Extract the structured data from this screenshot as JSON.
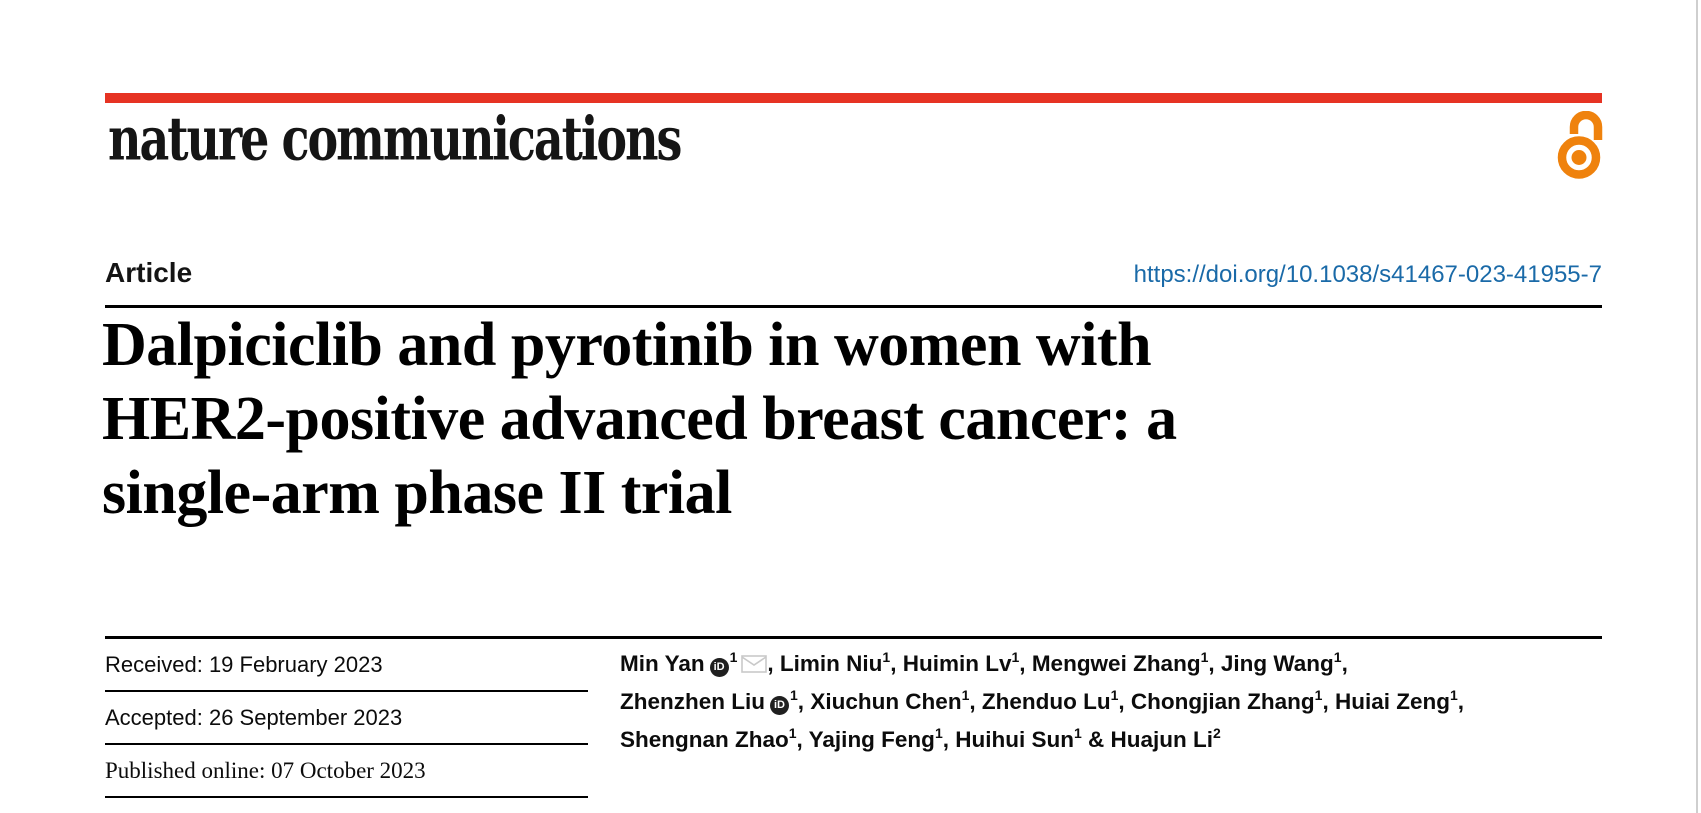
{
  "brand": {
    "journal": "nature communications",
    "bar_color": "#e63323",
    "open_access_color": "#ef820d",
    "open_access_icon": "open-access-lock"
  },
  "header": {
    "article_label": "Article",
    "doi": "https://doi.org/10.1038/s41467-023-41955-7",
    "doi_color": "#1a6aa8"
  },
  "title_lines": [
    "Dalpiciclib and pyrotinib in women with",
    "HER2-positive advanced breast cancer: a",
    "single-arm phase II trial"
  ],
  "dates": [
    {
      "text": "Received: 19 February 2023"
    },
    {
      "text": "Accepted: 26 September 2023"
    },
    {
      "text": "Published online: 07 October 2023"
    }
  ],
  "authors": {
    "orcid_icon_label": "iD",
    "lines": [
      {
        "trail": ",",
        "authors": [
          {
            "name": "Min Yan",
            "orcid": true,
            "sup": "1",
            "envelope": true
          },
          {
            "name": "Limin Niu",
            "sup": "1"
          },
          {
            "name": "Huimin Lv",
            "sup": "1"
          },
          {
            "name": "Mengwei Zhang",
            "sup": "1"
          },
          {
            "name": "Jing Wang",
            "sup": "1"
          }
        ]
      },
      {
        "trail": ",",
        "authors": [
          {
            "name": "Zhenzhen Liu",
            "orcid": true,
            "sup": "1"
          },
          {
            "name": "Xiuchun Chen",
            "sup": "1"
          },
          {
            "name": "Zhenduo Lu",
            "sup": "1"
          },
          {
            "name": "Chongjian Zhang",
            "sup": "1"
          },
          {
            "name": "Huiai Zeng",
            "sup": "1"
          }
        ]
      },
      {
        "trail": "",
        "authors": [
          {
            "name": "Shengnan Zhao",
            "sup": "1"
          },
          {
            "name": "Yajing Feng",
            "sup": "1"
          },
          {
            "name": "Huihui Sun",
            "sup": "1"
          },
          {
            "name": "Huajun Li",
            "sup": "2",
            "amp_before": true
          }
        ]
      }
    ]
  }
}
